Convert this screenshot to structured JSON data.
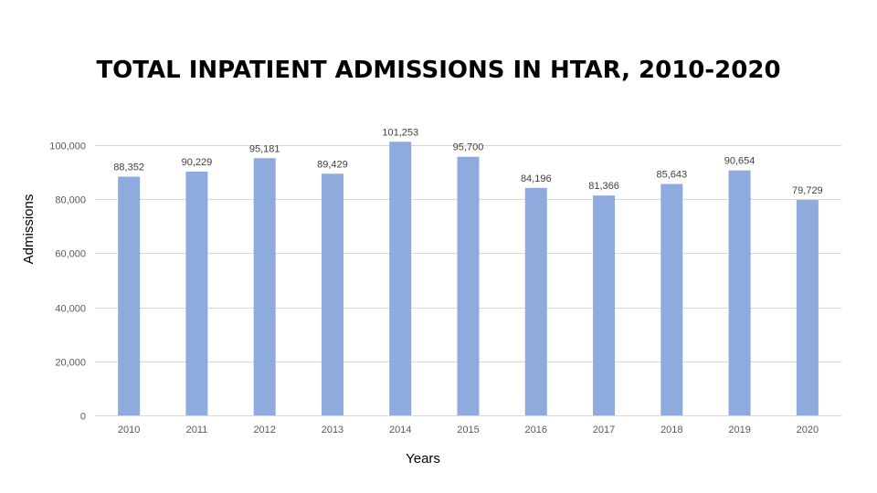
{
  "chart_data": {
    "type": "bar",
    "title": "TOTAL INPATIENT ADMISSIONS IN HTAR, 2010-2020",
    "xlabel": "Years",
    "ylabel": "Admissions",
    "categories": [
      "2010",
      "2011",
      "2012",
      "2013",
      "2014",
      "2015",
      "2016",
      "2017",
      "2018",
      "2019",
      "2020"
    ],
    "values": [
      88352,
      90229,
      95181,
      89429,
      101253,
      95700,
      84196,
      81366,
      85643,
      90654,
      79729
    ],
    "value_labels": [
      "88,352",
      "90,229",
      "95,181",
      "89,429",
      "101,253",
      "95,700",
      "84,196",
      "81,366",
      "85,643",
      "90,654",
      "79,729"
    ],
    "yticks": [
      0,
      20000,
      40000,
      60000,
      80000,
      100000
    ],
    "ytick_labels": [
      "0",
      "20,000",
      "40,000",
      "60,000",
      "80,000",
      "100,000"
    ],
    "ylim": [
      0,
      100000
    ],
    "grid": true,
    "legend": "none",
    "bar_color": "#8FAADC",
    "grid_color": "#D9D9D9"
  }
}
